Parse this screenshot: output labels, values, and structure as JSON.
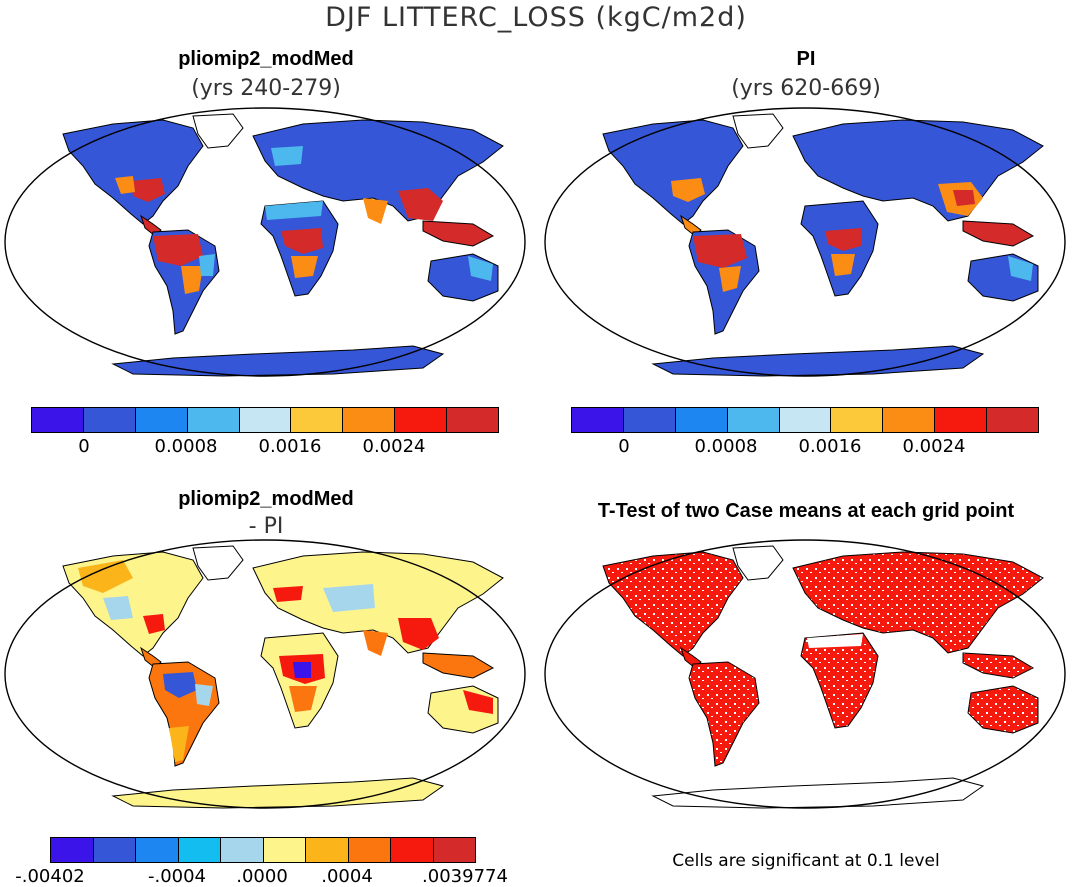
{
  "title": "DJF LITTERC_LOSS (kgC/m2d)",
  "panels": {
    "top_left": {
      "title": "pliomip2_modMed",
      "subtitle": "(yrs 240-279)"
    },
    "top_right": {
      "title": "PI",
      "subtitle": "(yrs 620-669)"
    },
    "bottom_left": {
      "title": "pliomip2_modMed",
      "subtitle": "- PI"
    },
    "bottom_right": {
      "title": "T-Test of two Case means at each grid point",
      "note": "Cells are significant at 0.1 level"
    }
  },
  "colorbar_abs": {
    "colors": [
      "#3a14e8",
      "#3556d6",
      "#1e86f0",
      "#4cb8ee",
      "#c6e6f4",
      "#fbc93a",
      "#fb8d14",
      "#f51a0d",
      "#d42a2a"
    ],
    "labels": [
      "0",
      "0.0008",
      "0.0016",
      "0.0024"
    ]
  },
  "colorbar_diff": {
    "colors": [
      "#3a14e8",
      "#3556d6",
      "#1e86f0",
      "#14bdf0",
      "#a6d6ec",
      "#fdf48c",
      "#fbb41a",
      "#fb760e",
      "#f51a0d",
      "#d42a2a"
    ],
    "labels": [
      "-.00402",
      "-.0004",
      ".0000",
      ".0004",
      ".0039774"
    ]
  },
  "map_colors": {
    "ocean": "#ffffff",
    "land_low": "#3556d6",
    "land_mid": "#4cb8ee",
    "land_high": "#d42a2a",
    "land_orange": "#fb8d14",
    "diff_base": "#fdf48c",
    "ttest": "#f51a0d"
  }
}
